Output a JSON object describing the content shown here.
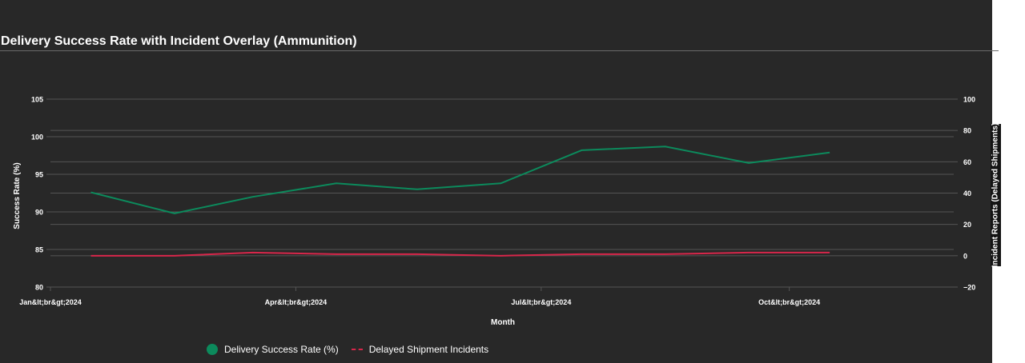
{
  "title": "Delivery Success Rate with Incident Overlay (Ammunition)",
  "chart_data": {
    "type": "line",
    "x": [
      "2024-01-01",
      "2024-02-01",
      "2024-03-01",
      "2024-04-01",
      "2024-05-01",
      "2024-06-01",
      "2024-07-01",
      "2024-08-01",
      "2024-09-01",
      "2024-10-01",
      "2024-11-01"
    ],
    "series": [
      {
        "name": "Delivery Success Rate (%)",
        "axis": "left",
        "color": "#0c8a5c",
        "values": [
          92.6,
          89.8,
          92.0,
          93.8,
          93.0,
          93.8,
          98.2,
          98.7,
          96.5,
          97.9,
          null
        ]
      },
      {
        "name": "Delayed Shipment Incidents",
        "axis": "right",
        "color": "#d7264a",
        "values": [
          0,
          0,
          2,
          1,
          1,
          0,
          1,
          1,
          2,
          2,
          null
        ]
      }
    ],
    "xlabel": "Month",
    "ylabel_left": "Success Rate (%)",
    "ylabel_right": "Incident Reports (Delayed Shipments)",
    "ylim_left": [
      80,
      105
    ],
    "ylim_right": [
      -20,
      100
    ],
    "yticks_left": [
      "105",
      "100",
      "95",
      "90",
      "85",
      "80"
    ],
    "yticks_right": [
      "100",
      "80",
      "60",
      "40",
      "20",
      "0",
      "−20"
    ],
    "xticks": [
      {
        "date": "2024-01-01",
        "label": "Jan&lt;br&gt;2024"
      },
      {
        "date": "2024-04-01",
        "label": "Apr&lt;br&gt;2024"
      },
      {
        "date": "2024-07-01",
        "label": "Jul&lt;br&gt;2024"
      },
      {
        "date": "2024-10-01",
        "label": "Oct&lt;br&gt;2024"
      }
    ],
    "x_range": [
      "2024-01-01",
      "2024-12-01"
    ],
    "grid": true,
    "legend_position": "bottom-left"
  },
  "colors": {
    "background": "#282828",
    "grid": "#555555",
    "text": "#ffffff"
  }
}
